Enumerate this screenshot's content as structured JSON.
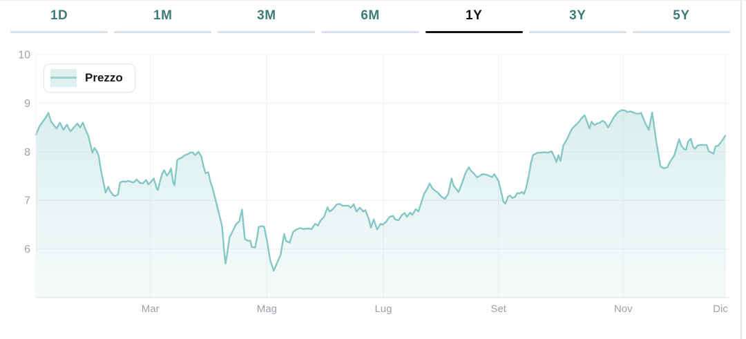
{
  "tabs": {
    "active_index": 4,
    "items": [
      {
        "label": "1D"
      },
      {
        "label": "1M"
      },
      {
        "label": "3M"
      },
      {
        "label": "6M"
      },
      {
        "label": "1Y"
      },
      {
        "label": "3Y"
      },
      {
        "label": "5Y"
      }
    ]
  },
  "legend": {
    "label": "Prezzo"
  },
  "colors": {
    "accent_teal": "#3d7b79",
    "active_tab": "#111417",
    "inactive_underline": "#d9dfea",
    "line": "#85c7c5",
    "area_top": "rgba(133,199,197,0.30)",
    "area_bottom": "rgba(133,199,197,0.08)",
    "grid": "#eef0f3",
    "axis_line": "#e7eaee",
    "axis_text": "#9aa2ab",
    "legend_swatch": "#def1ef"
  },
  "chart_data": {
    "type": "area",
    "title": "",
    "xlabel": "",
    "ylabel": "",
    "legend_entries": [
      "Prezzo"
    ],
    "legend_position": "top-left",
    "grid": true,
    "ylim": [
      5,
      10
    ],
    "y_ticks": [
      6,
      7,
      8,
      9,
      10
    ],
    "x_ticks": [
      {
        "label": "Mar",
        "pos": 0.166
      },
      {
        "label": "Mag",
        "pos": 0.335
      },
      {
        "label": "Lug",
        "pos": 0.504
      },
      {
        "label": "Set",
        "pos": 0.671
      },
      {
        "label": "Nov",
        "pos": 0.852
      },
      {
        "label": "Dic",
        "pos": 1.0
      }
    ],
    "series": [
      {
        "name": "Prezzo",
        "points": [
          [
            0.0,
            8.35
          ],
          [
            0.005,
            8.52
          ],
          [
            0.01,
            8.62
          ],
          [
            0.014,
            8.7
          ],
          [
            0.018,
            8.8
          ],
          [
            0.022,
            8.62
          ],
          [
            0.026,
            8.55
          ],
          [
            0.03,
            8.48
          ],
          [
            0.035,
            8.6
          ],
          [
            0.04,
            8.45
          ],
          [
            0.045,
            8.56
          ],
          [
            0.05,
            8.42
          ],
          [
            0.055,
            8.5
          ],
          [
            0.06,
            8.58
          ],
          [
            0.064,
            8.5
          ],
          [
            0.068,
            8.6
          ],
          [
            0.072,
            8.45
          ],
          [
            0.076,
            8.33
          ],
          [
            0.079,
            8.16
          ],
          [
            0.082,
            7.98
          ],
          [
            0.085,
            8.08
          ],
          [
            0.088,
            8.02
          ],
          [
            0.091,
            7.92
          ],
          [
            0.094,
            7.65
          ],
          [
            0.098,
            7.37
          ],
          [
            0.101,
            7.16
          ],
          [
            0.105,
            7.28
          ],
          [
            0.108,
            7.18
          ],
          [
            0.112,
            7.11
          ],
          [
            0.115,
            7.09
          ],
          [
            0.119,
            7.12
          ],
          [
            0.122,
            7.37
          ],
          [
            0.126,
            7.39
          ],
          [
            0.13,
            7.38
          ],
          [
            0.134,
            7.4
          ],
          [
            0.138,
            7.38
          ],
          [
            0.142,
            7.37
          ],
          [
            0.146,
            7.43
          ],
          [
            0.151,
            7.36
          ],
          [
            0.155,
            7.35
          ],
          [
            0.16,
            7.42
          ],
          [
            0.163,
            7.33
          ],
          [
            0.167,
            7.38
          ],
          [
            0.171,
            7.45
          ],
          [
            0.175,
            7.26
          ],
          [
            0.177,
            7.21
          ],
          [
            0.18,
            7.39
          ],
          [
            0.183,
            7.54
          ],
          [
            0.186,
            7.62
          ],
          [
            0.19,
            7.51
          ],
          [
            0.193,
            7.56
          ],
          [
            0.196,
            7.66
          ],
          [
            0.199,
            7.37
          ],
          [
            0.201,
            7.31
          ],
          [
            0.205,
            7.83
          ],
          [
            0.208,
            7.86
          ],
          [
            0.212,
            7.88
          ],
          [
            0.216,
            7.93
          ],
          [
            0.22,
            7.95
          ],
          [
            0.225,
            7.99
          ],
          [
            0.228,
            7.98
          ],
          [
            0.231,
            7.93
          ],
          [
            0.236,
            8.0
          ],
          [
            0.24,
            7.9
          ],
          [
            0.243,
            7.71
          ],
          [
            0.246,
            7.56
          ],
          [
            0.25,
            7.58
          ],
          [
            0.253,
            7.39
          ],
          [
            0.256,
            7.26
          ],
          [
            0.261,
            6.99
          ],
          [
            0.266,
            6.7
          ],
          [
            0.27,
            6.47
          ],
          [
            0.273,
            5.95
          ],
          [
            0.275,
            5.7
          ],
          [
            0.278,
            5.95
          ],
          [
            0.281,
            6.24
          ],
          [
            0.286,
            6.38
          ],
          [
            0.29,
            6.5
          ],
          [
            0.295,
            6.57
          ],
          [
            0.299,
            6.81
          ],
          [
            0.303,
            6.21
          ],
          [
            0.307,
            6.17
          ],
          [
            0.311,
            6.17
          ],
          [
            0.313,
            6.04
          ],
          [
            0.318,
            6.03
          ],
          [
            0.321,
            6.25
          ],
          [
            0.323,
            6.45
          ],
          [
            0.327,
            6.47
          ],
          [
            0.331,
            6.46
          ],
          [
            0.335,
            6.19
          ],
          [
            0.34,
            5.76
          ],
          [
            0.345,
            5.55
          ],
          [
            0.35,
            5.72
          ],
          [
            0.355,
            5.88
          ],
          [
            0.36,
            6.31
          ],
          [
            0.363,
            6.16
          ],
          [
            0.368,
            6.13
          ],
          [
            0.373,
            6.35
          ],
          [
            0.378,
            6.4
          ],
          [
            0.383,
            6.43
          ],
          [
            0.388,
            6.41
          ],
          [
            0.394,
            6.42
          ],
          [
            0.4,
            6.41
          ],
          [
            0.405,
            6.52
          ],
          [
            0.409,
            6.48
          ],
          [
            0.413,
            6.59
          ],
          [
            0.418,
            6.66
          ],
          [
            0.423,
            6.86
          ],
          [
            0.426,
            6.77
          ],
          [
            0.431,
            6.82
          ],
          [
            0.436,
            6.91
          ],
          [
            0.44,
            6.93
          ],
          [
            0.445,
            6.89
          ],
          [
            0.449,
            6.89
          ],
          [
            0.453,
            6.89
          ],
          [
            0.457,
            6.85
          ],
          [
            0.461,
            6.92
          ],
          [
            0.465,
            6.77
          ],
          [
            0.47,
            6.85
          ],
          [
            0.475,
            6.77
          ],
          [
            0.478,
            6.8
          ],
          [
            0.483,
            6.61
          ],
          [
            0.486,
            6.44
          ],
          [
            0.49,
            6.61
          ],
          [
            0.495,
            6.4
          ],
          [
            0.5,
            6.52
          ],
          [
            0.503,
            6.5
          ],
          [
            0.508,
            6.56
          ],
          [
            0.513,
            6.66
          ],
          [
            0.518,
            6.68
          ],
          [
            0.521,
            6.61
          ],
          [
            0.526,
            6.59
          ],
          [
            0.531,
            6.7
          ],
          [
            0.535,
            6.74
          ],
          [
            0.538,
            6.66
          ],
          [
            0.543,
            6.75
          ],
          [
            0.546,
            6.7
          ],
          [
            0.551,
            6.82
          ],
          [
            0.555,
            6.77
          ],
          [
            0.558,
            6.91
          ],
          [
            0.563,
            7.13
          ],
          [
            0.568,
            7.25
          ],
          [
            0.571,
            7.35
          ],
          [
            0.575,
            7.25
          ],
          [
            0.578,
            7.21
          ],
          [
            0.583,
            7.16
          ],
          [
            0.588,
            7.08
          ],
          [
            0.593,
            7.03
          ],
          [
            0.598,
            7.13
          ],
          [
            0.603,
            7.45
          ],
          [
            0.606,
            7.3
          ],
          [
            0.61,
            7.23
          ],
          [
            0.613,
            7.17
          ],
          [
            0.618,
            7.35
          ],
          [
            0.623,
            7.56
          ],
          [
            0.628,
            7.68
          ],
          [
            0.631,
            7.61
          ],
          [
            0.635,
            7.56
          ],
          [
            0.64,
            7.47
          ],
          [
            0.643,
            7.5
          ],
          [
            0.648,
            7.54
          ],
          [
            0.653,
            7.53
          ],
          [
            0.658,
            7.5
          ],
          [
            0.662,
            7.48
          ],
          [
            0.665,
            7.54
          ],
          [
            0.671,
            7.4
          ],
          [
            0.675,
            7.17
          ],
          [
            0.678,
            6.98
          ],
          [
            0.681,
            6.93
          ],
          [
            0.685,
            7.08
          ],
          [
            0.688,
            7.1
          ],
          [
            0.691,
            7.05
          ],
          [
            0.695,
            7.07
          ],
          [
            0.698,
            7.15
          ],
          [
            0.701,
            7.14
          ],
          [
            0.705,
            7.17
          ],
          [
            0.708,
            7.13
          ],
          [
            0.711,
            7.25
          ],
          [
            0.715,
            7.52
          ],
          [
            0.718,
            7.76
          ],
          [
            0.721,
            7.93
          ],
          [
            0.725,
            7.96
          ],
          [
            0.728,
            7.98
          ],
          [
            0.733,
            7.98
          ],
          [
            0.738,
            7.99
          ],
          [
            0.743,
            7.98
          ],
          [
            0.748,
            8.01
          ],
          [
            0.753,
            7.87
          ],
          [
            0.755,
            7.79
          ],
          [
            0.758,
            7.93
          ],
          [
            0.761,
            7.81
          ],
          [
            0.765,
            8.13
          ],
          [
            0.768,
            8.2
          ],
          [
            0.771,
            8.28
          ],
          [
            0.775,
            8.4
          ],
          [
            0.778,
            8.48
          ],
          [
            0.783,
            8.55
          ],
          [
            0.788,
            8.62
          ],
          [
            0.792,
            8.7
          ],
          [
            0.796,
            8.75
          ],
          [
            0.8,
            8.6
          ],
          [
            0.803,
            8.48
          ],
          [
            0.806,
            8.62
          ],
          [
            0.81,
            8.55
          ],
          [
            0.814,
            8.58
          ],
          [
            0.818,
            8.6
          ],
          [
            0.822,
            8.64
          ],
          [
            0.826,
            8.6
          ],
          [
            0.83,
            8.5
          ],
          [
            0.834,
            8.6
          ],
          [
            0.838,
            8.7
          ],
          [
            0.842,
            8.78
          ],
          [
            0.846,
            8.83
          ],
          [
            0.85,
            8.86
          ],
          [
            0.854,
            8.85
          ],
          [
            0.858,
            8.82
          ],
          [
            0.863,
            8.83
          ],
          [
            0.868,
            8.8
          ],
          [
            0.873,
            8.78
          ],
          [
            0.878,
            8.8
          ],
          [
            0.883,
            8.62
          ],
          [
            0.889,
            8.45
          ],
          [
            0.894,
            8.81
          ],
          [
            0.9,
            8.2
          ],
          [
            0.906,
            7.7
          ],
          [
            0.911,
            7.66
          ],
          [
            0.916,
            7.68
          ],
          [
            0.92,
            7.8
          ],
          [
            0.926,
            7.92
          ],
          [
            0.93,
            8.11
          ],
          [
            0.933,
            8.26
          ],
          [
            0.936,
            8.13
          ],
          [
            0.94,
            8.06
          ],
          [
            0.943,
            8.04
          ],
          [
            0.946,
            8.21
          ],
          [
            0.95,
            8.27
          ],
          [
            0.953,
            8.11
          ],
          [
            0.956,
            8.06
          ],
          [
            0.96,
            8.13
          ],
          [
            0.964,
            8.14
          ],
          [
            0.968,
            8.14
          ],
          [
            0.973,
            8.14
          ],
          [
            0.976,
            8.01
          ],
          [
            0.98,
            7.98
          ],
          [
            0.983,
            7.96
          ],
          [
            0.986,
            8.11
          ],
          [
            0.99,
            8.13
          ],
          [
            0.994,
            8.2
          ],
          [
            1.0,
            8.33
          ]
        ]
      }
    ]
  }
}
